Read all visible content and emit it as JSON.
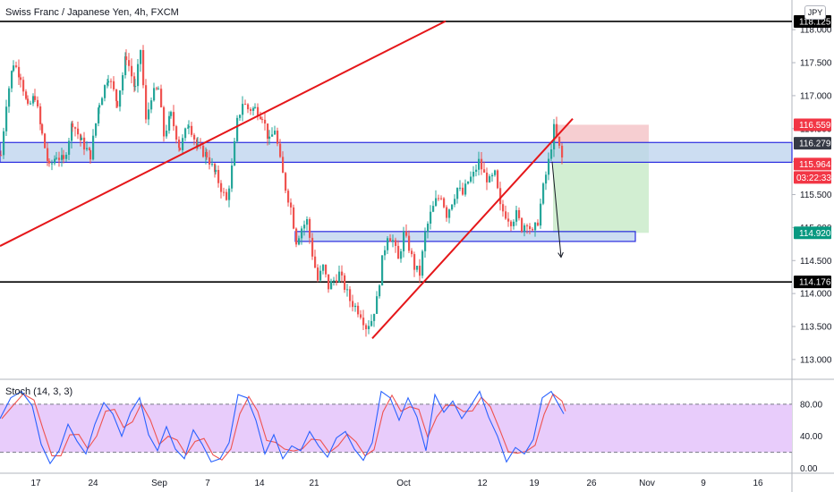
{
  "header": {
    "title": "Swiss Franc / Japanese Yen, 4h, FXCM",
    "currency_button": "JPY"
  },
  "indicator": {
    "label": "Stoch (14, 3, 3)"
  },
  "countdown": "03:22:33",
  "colors": {
    "up": "#26a69a",
    "down": "#ef5350",
    "trendline": "#e5171a",
    "zone_fill": "#bbd2ee",
    "zone_stroke": "#2a2be0",
    "stop_zone": "#f5c6c9",
    "target_zone": "#cdeccd",
    "stoch_band": "#e8ccfb",
    "k_line": "#2962ff",
    "d_line": "#ef5350"
  },
  "chart_data": [
    {
      "type": "candlestick",
      "title": "Swiss Franc / Japanese Yen, 4h, FXCM",
      "ylim": [
        112.7,
        118.45
      ],
      "price_ticks": [
        "118.000",
        "117.500",
        "117.000",
        "116.500",
        "116.000",
        "115.500",
        "115.000",
        "114.500",
        "114.000",
        "113.500",
        "113.000"
      ],
      "price_tick_values": [
        118.0,
        117.5,
        117.0,
        116.5,
        116.0,
        115.5,
        115.0,
        114.5,
        114.0,
        113.5,
        113.0
      ],
      "x_ticks": [
        "17",
        "24",
        "Sep",
        "7",
        "14",
        "21",
        "Oct",
        "12",
        "19",
        "26",
        "Nov",
        "9",
        "16"
      ],
      "close_points": [
        [
          0,
          116.1
        ],
        [
          6,
          116.9
        ],
        [
          14,
          117.5
        ],
        [
          22,
          117.3
        ],
        [
          30,
          116.8
        ],
        [
          38,
          117.0
        ],
        [
          46,
          116.4
        ],
        [
          54,
          115.9
        ],
        [
          62,
          116.1
        ],
        [
          70,
          116.0
        ],
        [
          80,
          116.6
        ],
        [
          90,
          116.3
        ],
        [
          100,
          116.1
        ],
        [
          110,
          116.9
        ],
        [
          120,
          117.3
        ],
        [
          130,
          116.9
        ],
        [
          140,
          117.6
        ],
        [
          150,
          117.1
        ],
        [
          156,
          117.7
        ],
        [
          162,
          116.6
        ],
        [
          168,
          117.0
        ],
        [
          176,
          117.1
        ],
        [
          182,
          116.4
        ],
        [
          190,
          116.7
        ],
        [
          200,
          116.2
        ],
        [
          210,
          116.6
        ],
        [
          220,
          116.2
        ],
        [
          230,
          116.1
        ],
        [
          240,
          115.8
        ],
        [
          246,
          115.6
        ],
        [
          252,
          115.4
        ],
        [
          258,
          115.9
        ],
        [
          264,
          116.6
        ],
        [
          270,
          116.9
        ],
        [
          276,
          116.8
        ],
        [
          284,
          116.8
        ],
        [
          292,
          116.7
        ],
        [
          300,
          116.3
        ],
        [
          306,
          116.5
        ],
        [
          312,
          116.0
        ],
        [
          318,
          115.6
        ],
        [
          324,
          115.3
        ],
        [
          330,
          114.8
        ],
        [
          336,
          115.0
        ],
        [
          342,
          115.1
        ],
        [
          348,
          114.6
        ],
        [
          354,
          114.2
        ],
        [
          360,
          114.4
        ],
        [
          366,
          114.1
        ],
        [
          372,
          114.2
        ],
        [
          378,
          114.3
        ],
        [
          384,
          114.1
        ],
        [
          390,
          113.9
        ],
        [
          396,
          113.8
        ],
        [
          402,
          113.7
        ],
        [
          408,
          113.5
        ],
        [
          414,
          113.6
        ],
        [
          420,
          113.9
        ],
        [
          426,
          114.5
        ],
        [
          432,
          114.9
        ],
        [
          438,
          114.8
        ],
        [
          444,
          114.5
        ],
        [
          450,
          114.9
        ],
        [
          456,
          114.7
        ],
        [
          462,
          114.4
        ],
        [
          468,
          114.3
        ],
        [
          474,
          114.9
        ],
        [
          480,
          115.2
        ],
        [
          486,
          115.4
        ],
        [
          492,
          115.5
        ],
        [
          498,
          115.2
        ],
        [
          504,
          115.4
        ],
        [
          510,
          115.6
        ],
        [
          516,
          115.5
        ],
        [
          522,
          115.7
        ],
        [
          528,
          115.8
        ],
        [
          534,
          116.0
        ],
        [
          540,
          115.8
        ],
        [
          546,
          115.7
        ],
        [
          552,
          115.8
        ],
        [
          558,
          115.3
        ],
        [
          564,
          115.2
        ],
        [
          570,
          115.1
        ],
        [
          576,
          115.2
        ],
        [
          582,
          115.0
        ],
        [
          588,
          115.1
        ],
        [
          594,
          114.9
        ],
        [
          600,
          115.1
        ],
        [
          606,
          115.6
        ],
        [
          612,
          116.0
        ],
        [
          618,
          116.5
        ],
        [
          624,
          116.2
        ],
        [
          628,
          116.0
        ]
      ],
      "horizontal_levels": [
        {
          "label": "118.125",
          "value": 118.125
        },
        {
          "label": "114.176",
          "value": 114.176
        }
      ],
      "price_tags": [
        {
          "label": "116.559",
          "value": 116.559,
          "color": "#f23645"
        },
        {
          "label": "116.279",
          "value": 116.279,
          "color": "#363a45"
        },
        {
          "label": "115.964",
          "value": 115.964,
          "color": "#f23645"
        },
        {
          "label": "114.920",
          "value": 114.92,
          "color": "#089981"
        }
      ],
      "zones": [
        {
          "from_x": 0,
          "to_x": 885,
          "top": 116.29,
          "bottom": 115.99
        },
        {
          "from_x": 330,
          "to_x": 710,
          "top": 114.94,
          "bottom": 114.79
        }
      ],
      "trendlines": [
        {
          "x1": 0,
          "y1": 114.72,
          "x2": 498,
          "y2": 118.13
        },
        {
          "x1": 416,
          "y1": 113.32,
          "x2": 640,
          "y2": 116.65
        }
      ],
      "position": {
        "x1": 618,
        "x2": 725,
        "entry": 116.279,
        "stop": 116.559,
        "target": 114.92
      },
      "arrow": {
        "x1": 617,
        "y1": 116.0,
        "x2": 627,
        "y2": 114.55
      }
    },
    {
      "type": "line",
      "title": "Stoch (14, 3, 3)",
      "ylim": [
        -5,
        110
      ],
      "y_ticks": [
        "80.00",
        "40.00",
        "0.00"
      ],
      "y_tick_values": [
        80,
        40,
        0
      ],
      "band": [
        20,
        80
      ],
      "k_points": [
        [
          0,
          62
        ],
        [
          12,
          88
        ],
        [
          24,
          96
        ],
        [
          36,
          78
        ],
        [
          46,
          30
        ],
        [
          56,
          6
        ],
        [
          66,
          22
        ],
        [
          76,
          55
        ],
        [
          86,
          34
        ],
        [
          96,
          18
        ],
        [
          106,
          55
        ],
        [
          116,
          82
        ],
        [
          126,
          68
        ],
        [
          136,
          40
        ],
        [
          146,
          70
        ],
        [
          156,
          88
        ],
        [
          166,
          42
        ],
        [
          176,
          22
        ],
        [
          186,
          52
        ],
        [
          196,
          24
        ],
        [
          206,
          12
        ],
        [
          216,
          48
        ],
        [
          226,
          30
        ],
        [
          236,
          8
        ],
        [
          246,
          12
        ],
        [
          256,
          32
        ],
        [
          266,
          92
        ],
        [
          276,
          88
        ],
        [
          286,
          60
        ],
        [
          296,
          18
        ],
        [
          306,
          42
        ],
        [
          316,
          12
        ],
        [
          326,
          28
        ],
        [
          336,
          22
        ],
        [
          346,
          46
        ],
        [
          356,
          28
        ],
        [
          366,
          14
        ],
        [
          376,
          38
        ],
        [
          386,
          46
        ],
        [
          396,
          24
        ],
        [
          406,
          10
        ],
        [
          416,
          32
        ],
        [
          426,
          96
        ],
        [
          436,
          88
        ],
        [
          446,
          60
        ],
        [
          456,
          88
        ],
        [
          466,
          64
        ],
        [
          476,
          22
        ],
        [
          486,
          92
        ],
        [
          496,
          70
        ],
        [
          506,
          84
        ],
        [
          516,
          62
        ],
        [
          526,
          78
        ],
        [
          536,
          96
        ],
        [
          546,
          64
        ],
        [
          556,
          40
        ],
        [
          566,
          8
        ],
        [
          576,
          26
        ],
        [
          586,
          18
        ],
        [
          596,
          36
        ],
        [
          606,
          88
        ],
        [
          616,
          96
        ],
        [
          626,
          76
        ],
        [
          630,
          68
        ]
      ]
    }
  ]
}
